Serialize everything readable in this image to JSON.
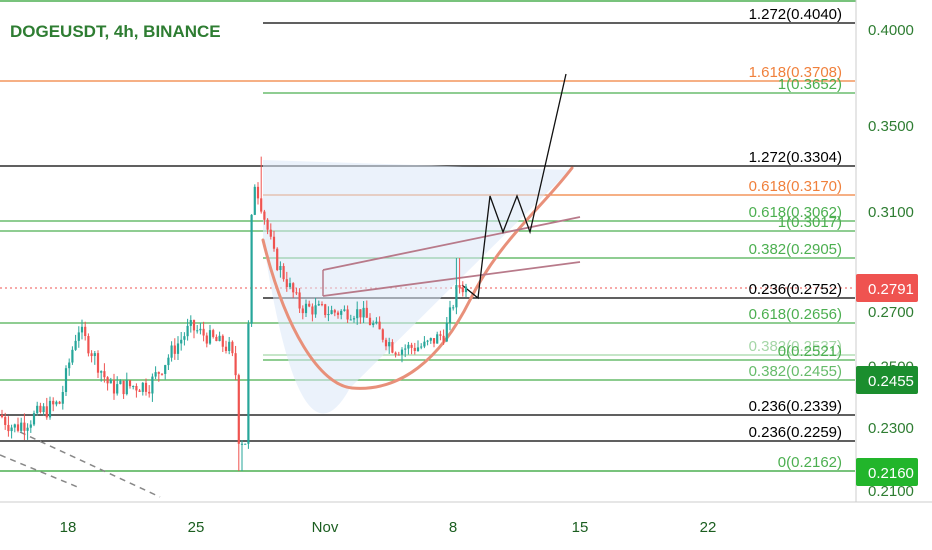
{
  "header": {
    "title": "DOGEUSDT, 4h, BINANCE"
  },
  "chart_data": {
    "type": "candlestick",
    "symbol": "DOGEUSDT",
    "interval": "4h",
    "exchange": "BINANCE",
    "y_axis": {
      "range": [
        0.21,
        0.405
      ],
      "ticks": [
        "0.4000",
        "0.3500",
        "0.3100",
        "0.2700",
        "0.2500",
        "0.2300",
        "0.2100"
      ]
    },
    "x_axis": {
      "ticks": [
        "18",
        "25",
        "Nov",
        "8",
        "15",
        "22"
      ]
    },
    "last_price": {
      "label": "0.2791",
      "value": 0.2791,
      "color": "#ef5350"
    },
    "axis_tags": [
      {
        "label": "0.2455",
        "value": 0.2455,
        "color": "#1b8e2e"
      },
      {
        "label": "0.2160",
        "value": 0.216,
        "color": "#22b52b"
      }
    ],
    "levels": [
      {
        "label": "1.272(0.4040)",
        "value": 0.404,
        "color": "#000000"
      },
      {
        "label": "1.618(0.3708)",
        "value": 0.3708,
        "color": "#f0803c"
      },
      {
        "label": "1(0.3652)",
        "value": 0.3652,
        "color": "#4caf50"
      },
      {
        "label": "1.272(0.3304)",
        "value": 0.3304,
        "color": "#000000"
      },
      {
        "label": "0.618(0.3170)",
        "value": 0.317,
        "color": "#f0803c"
      },
      {
        "label": "0.618(0.3062)",
        "value": 0.3062,
        "color": "#4caf50"
      },
      {
        "label": "1(0.3017)",
        "value": 0.3017,
        "color": "#4caf50"
      },
      {
        "label": "0.382(0.2905)",
        "value": 0.2905,
        "color": "#4caf50"
      },
      {
        "label": "0.236(0.2752)",
        "value": 0.2752,
        "color": "#000000"
      },
      {
        "label": "0.618(0.2656)",
        "value": 0.2656,
        "color": "#4caf50"
      },
      {
        "label": "0.382(0.2537)",
        "value": 0.2537,
        "color": "#a5d6a7"
      },
      {
        "label": "0(0.2521)",
        "value": 0.2521,
        "color": "#4caf50"
      },
      {
        "label": "0.382(0.2455)",
        "value": 0.2455,
        "color": "#66bb6a"
      },
      {
        "label": "0.236(0.2339)",
        "value": 0.2339,
        "color": "#000000"
      },
      {
        "label": "0.236(0.2259)",
        "value": 0.2259,
        "color": "#000000"
      },
      {
        "label": "0(0.2162)",
        "value": 0.2162,
        "color": "#4caf50"
      }
    ],
    "colors": {
      "up": "#26a69a",
      "down": "#ef5350",
      "cup": "#e8907a",
      "channel": "#b87a8a",
      "accent": "#2e7d32"
    }
  }
}
